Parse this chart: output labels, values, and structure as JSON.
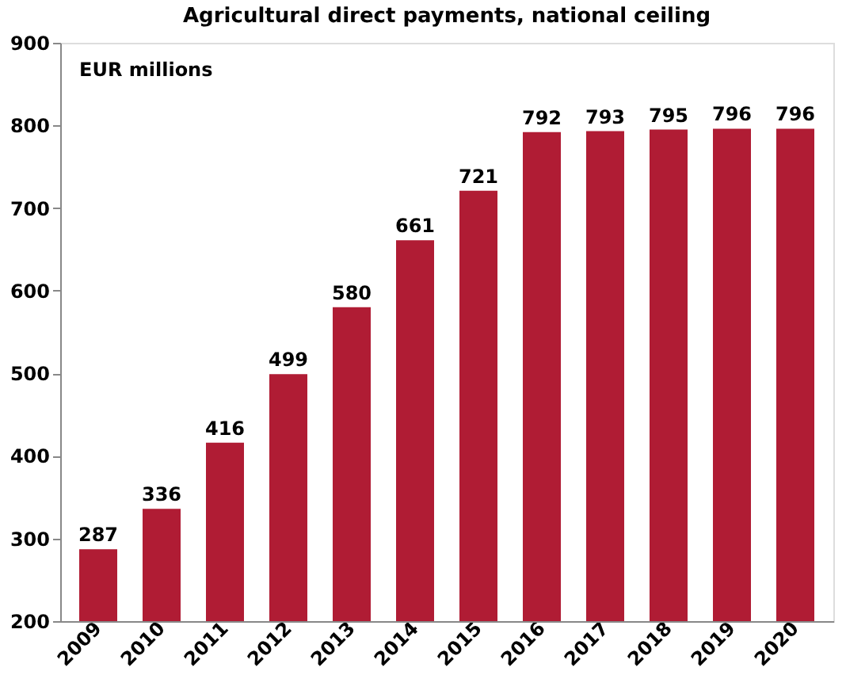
{
  "chart_data": {
    "type": "bar",
    "title": "Agricultural direct payments, national ceiling",
    "annotations": [
      "EUR millions"
    ],
    "categories": [
      "2009",
      "2010",
      "2011",
      "2012",
      "2013",
      "2014",
      "2015",
      "2016",
      "2017",
      "2018",
      "2019",
      "2020"
    ],
    "values": [
      287,
      336,
      416,
      499,
      580,
      661,
      721,
      792,
      793,
      795,
      796,
      796
    ],
    "color": "#b01c34",
    "data_labels": true,
    "grid": false,
    "ylim": [
      200,
      900
    ],
    "yticks": [
      200,
      300,
      400,
      500,
      600,
      700,
      800,
      900
    ]
  }
}
